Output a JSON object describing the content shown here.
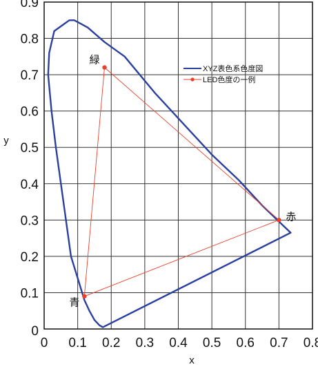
{
  "chart_data": {
    "type": "line",
    "title": "",
    "xlabel": "x",
    "ylabel": "y",
    "xlim": [
      0,
      0.8
    ],
    "ylim": [
      0,
      0.9
    ],
    "grid": true,
    "legend_placement": "top-right",
    "x_ticks": [
      "0",
      "0.1",
      "0.2",
      "0.3",
      "0.4",
      "0.5",
      "0.6",
      "0.7",
      "0.8"
    ],
    "y_ticks": [
      "0",
      "0.1",
      "0.2",
      "0.3",
      "0.4",
      "0.5",
      "0.6",
      "0.7",
      "0.8",
      "0.9"
    ],
    "series": [
      {
        "name": "XYZ表色系色度図",
        "color": "#2b3f9e",
        "closed": true,
        "markers": false,
        "points": [
          [
            0.175,
            0.005
          ],
          [
            0.165,
            0.01
          ],
          [
            0.15,
            0.025
          ],
          [
            0.135,
            0.05
          ],
          [
            0.12,
            0.08
          ],
          [
            0.1,
            0.14
          ],
          [
            0.08,
            0.2
          ],
          [
            0.065,
            0.3
          ],
          [
            0.05,
            0.4
          ],
          [
            0.035,
            0.5
          ],
          [
            0.022,
            0.6
          ],
          [
            0.012,
            0.7
          ],
          [
            0.015,
            0.76
          ],
          [
            0.03,
            0.82
          ],
          [
            0.06,
            0.84
          ],
          [
            0.075,
            0.85
          ],
          [
            0.09,
            0.85
          ],
          [
            0.13,
            0.83
          ],
          [
            0.18,
            0.79
          ],
          [
            0.24,
            0.75
          ],
          [
            0.33,
            0.65
          ],
          [
            0.42,
            0.56
          ],
          [
            0.5,
            0.48
          ],
          [
            0.58,
            0.41
          ],
          [
            0.65,
            0.34
          ],
          [
            0.735,
            0.265
          ],
          [
            0.175,
            0.005
          ]
        ]
      },
      {
        "name": "LED色度の一例",
        "color": "#e8402a",
        "closed": true,
        "markers": true,
        "points": [
          [
            0.18,
            0.72
          ],
          [
            0.7,
            0.3
          ],
          [
            0.12,
            0.09
          ]
        ]
      }
    ],
    "annotations": [
      {
        "text": "緑",
        "x": 0.18,
        "y": 0.72
      },
      {
        "text": "赤",
        "x": 0.7,
        "y": 0.3
      },
      {
        "text": "青",
        "x": 0.12,
        "y": 0.09
      }
    ]
  }
}
